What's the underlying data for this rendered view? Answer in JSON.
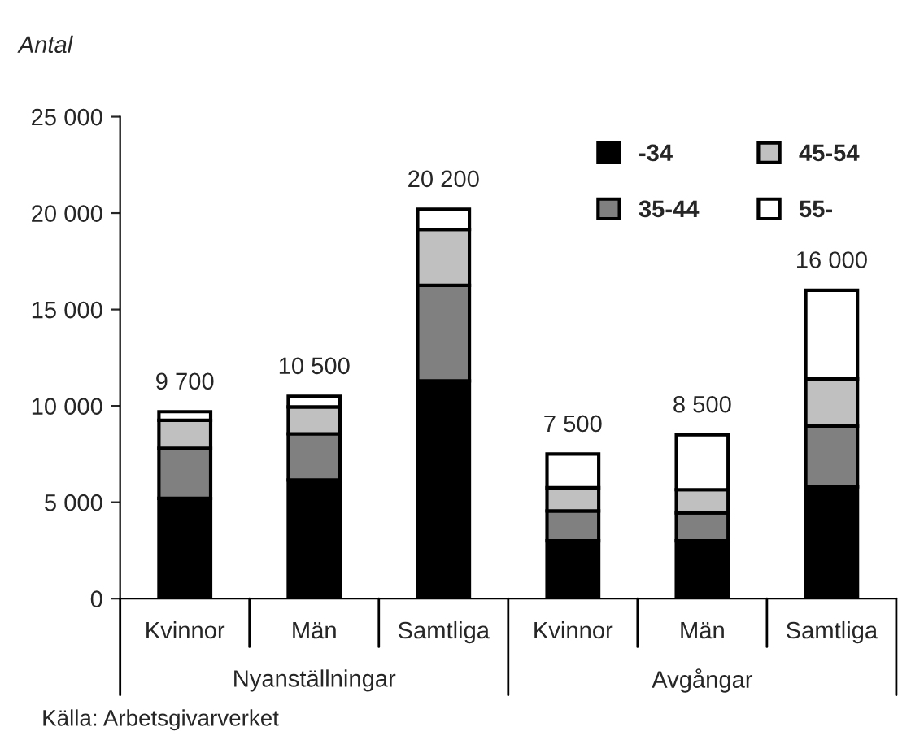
{
  "chart_data": {
    "type": "bar",
    "stacked": true,
    "ylabel": "Antal",
    "categories": [
      "Kvinnor",
      "Män",
      "Samtliga",
      "Kvinnor",
      "Män",
      "Samtliga"
    ],
    "series": [
      {
        "name": "-34",
        "color": "#000000",
        "values": [
          5200,
          6150,
          11300,
          3000,
          3000,
          5800
        ]
      },
      {
        "name": "35-44",
        "color": "#808080",
        "values": [
          2600,
          2400,
          4950,
          1550,
          1450,
          3150
        ]
      },
      {
        "name": "45-54",
        "color": "#c0c0c0",
        "values": [
          1450,
          1400,
          2900,
          1200,
          1200,
          2450
        ]
      },
      {
        "name": "55-",
        "color": "#ffffff",
        "values": [
          450,
          550,
          1050,
          1750,
          2850,
          4600
        ]
      }
    ],
    "totals": [
      "9 700",
      "10 500",
      "20 200",
      "7 500",
      "8 500",
      "16 000"
    ],
    "ylim": [
      0,
      25000
    ],
    "yticks": [
      0,
      {
        "value": 5000,
        "label": "5 000"
      },
      {
        "value": 10000,
        "label": "10 000"
      },
      {
        "value": 15000,
        "label": "15 000"
      },
      {
        "value": 20000,
        "label": "20 000"
      },
      {
        "value": 25000,
        "label": "25 000"
      }
    ],
    "grid": false,
    "legend": "top right",
    "annotations": [
      "Nyanställningar",
      "Avgångar",
      "Källa: Arbetsgivarverket"
    ]
  }
}
